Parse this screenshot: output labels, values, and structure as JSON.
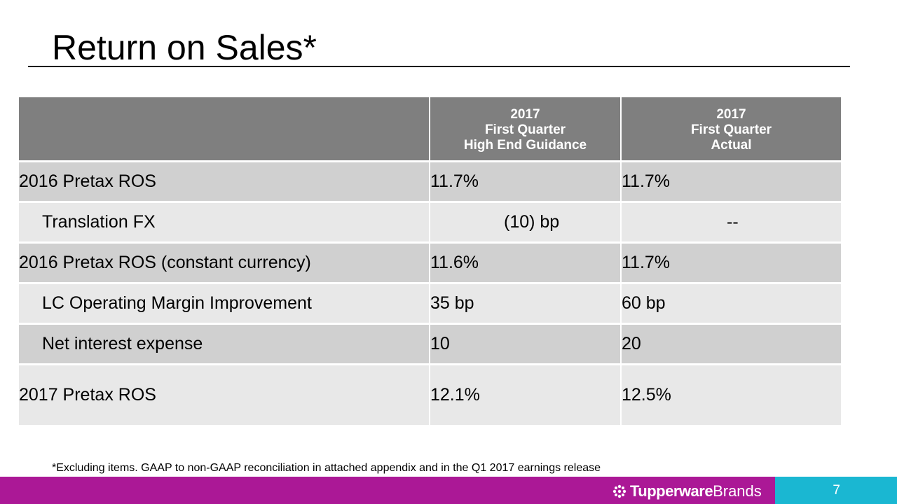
{
  "slide": {
    "title": "Return on Sales*",
    "footnote": "*Excluding items. GAAP to non-GAAP reconciliation in attached appendix and in the Q1 2017 earnings release",
    "page_number": "7"
  },
  "brand": {
    "name_bold": "Tupperware",
    "name_light": "Brands",
    "logo_icon": "tupperware-flower-icon"
  },
  "colors": {
    "footer_bar": "#ab1896",
    "page_box": "#1ab7d2",
    "header_fill": "#7f7f7f",
    "row_dark": "#d0d0d0",
    "row_light": "#e8e8e8"
  },
  "table": {
    "columns": [
      {
        "lines": [
          "",
          "",
          ""
        ]
      },
      {
        "lines": [
          "2017",
          "First Quarter",
          "High End Guidance"
        ]
      },
      {
        "lines": [
          "2017",
          "First Quarter",
          "Actual"
        ]
      }
    ],
    "rows": [
      {
        "label": "2016 Pretax ROS",
        "guidance": "11.7%",
        "actual": "11.7%"
      },
      {
        "label": "Translation FX",
        "guidance": "(10) bp",
        "actual": "--"
      },
      {
        "label": "2016 Pretax ROS (constant currency)",
        "guidance": "11.6%",
        "actual": "11.7%"
      },
      {
        "label": "LC Operating Margin Improvement",
        "guidance": "35 bp",
        "actual": "60 bp"
      },
      {
        "label": "Net interest expense",
        "guidance": "10",
        "actual": "20"
      },
      {
        "label": "2017 Pretax ROS",
        "guidance": "12.1%",
        "actual": "12.5%"
      }
    ]
  }
}
